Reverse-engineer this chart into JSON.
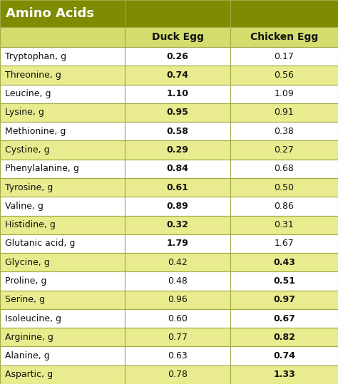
{
  "title": "Amino Acids",
  "rows": [
    {
      "label": "Tryptophan, g",
      "duck": "0.26",
      "chicken": "0.17",
      "duck_bold": true,
      "chicken_bold": false,
      "highlighted": false
    },
    {
      "label": "Threonine, g",
      "duck": "0.74",
      "chicken": "0.56",
      "duck_bold": true,
      "chicken_bold": false,
      "highlighted": true
    },
    {
      "label": "Leucine, g",
      "duck": "1.10",
      "chicken": "1.09",
      "duck_bold": true,
      "chicken_bold": false,
      "highlighted": false
    },
    {
      "label": "Lysine, g",
      "duck": "0.95",
      "chicken": "0.91",
      "duck_bold": true,
      "chicken_bold": false,
      "highlighted": true
    },
    {
      "label": "Methionine, g",
      "duck": "0.58",
      "chicken": "0.38",
      "duck_bold": true,
      "chicken_bold": false,
      "highlighted": false
    },
    {
      "label": "Cystine, g",
      "duck": "0.29",
      "chicken": "0.27",
      "duck_bold": true,
      "chicken_bold": false,
      "highlighted": true
    },
    {
      "label": "Phenylalanine, g",
      "duck": "0.84",
      "chicken": "0.68",
      "duck_bold": true,
      "chicken_bold": false,
      "highlighted": false
    },
    {
      "label": "Tyrosine, g",
      "duck": "0.61",
      "chicken": "0.50",
      "duck_bold": true,
      "chicken_bold": false,
      "highlighted": true
    },
    {
      "label": "Valine, g",
      "duck": "0.89",
      "chicken": "0.86",
      "duck_bold": true,
      "chicken_bold": false,
      "highlighted": false
    },
    {
      "label": "Histidine, g",
      "duck": "0.32",
      "chicken": "0.31",
      "duck_bold": true,
      "chicken_bold": false,
      "highlighted": true
    },
    {
      "label": "Glutanic acid, g",
      "duck": "1.79",
      "chicken": "1.67",
      "duck_bold": true,
      "chicken_bold": false,
      "highlighted": false
    },
    {
      "label": "Glycine, g",
      "duck": "0.42",
      "chicken": "0.43",
      "duck_bold": false,
      "chicken_bold": true,
      "highlighted": true
    },
    {
      "label": "Proline, g",
      "duck": "0.48",
      "chicken": "0.51",
      "duck_bold": false,
      "chicken_bold": true,
      "highlighted": false
    },
    {
      "label": "Serine, g",
      "duck": "0.96",
      "chicken": "0.97",
      "duck_bold": false,
      "chicken_bold": true,
      "highlighted": true
    },
    {
      "label": "Isoleucine, g",
      "duck": "0.60",
      "chicken": "0.67",
      "duck_bold": false,
      "chicken_bold": true,
      "highlighted": false
    },
    {
      "label": "Arginine, g",
      "duck": "0.77",
      "chicken": "0.82",
      "duck_bold": false,
      "chicken_bold": true,
      "highlighted": true
    },
    {
      "label": "Alanine, g",
      "duck": "0.63",
      "chicken": "0.74",
      "duck_bold": false,
      "chicken_bold": true,
      "highlighted": false
    },
    {
      "label": "Aspartic, g",
      "duck": "0.78",
      "chicken": "1.33",
      "duck_bold": false,
      "chicken_bold": true,
      "highlighted": true
    }
  ],
  "header_bg": "#7d8c00",
  "header_text_color": "#FFFFFF",
  "subheader_bg": "#d4dc6e",
  "subheader_text_color": "#111111",
  "row_highlight_bg": "#e8ec8e",
  "row_normal_bg": "#FFFFFF",
  "border_color": "#a0aa44",
  "text_color": "#111111",
  "title_fontsize": 13,
  "header_fontsize": 10,
  "row_fontsize": 9
}
